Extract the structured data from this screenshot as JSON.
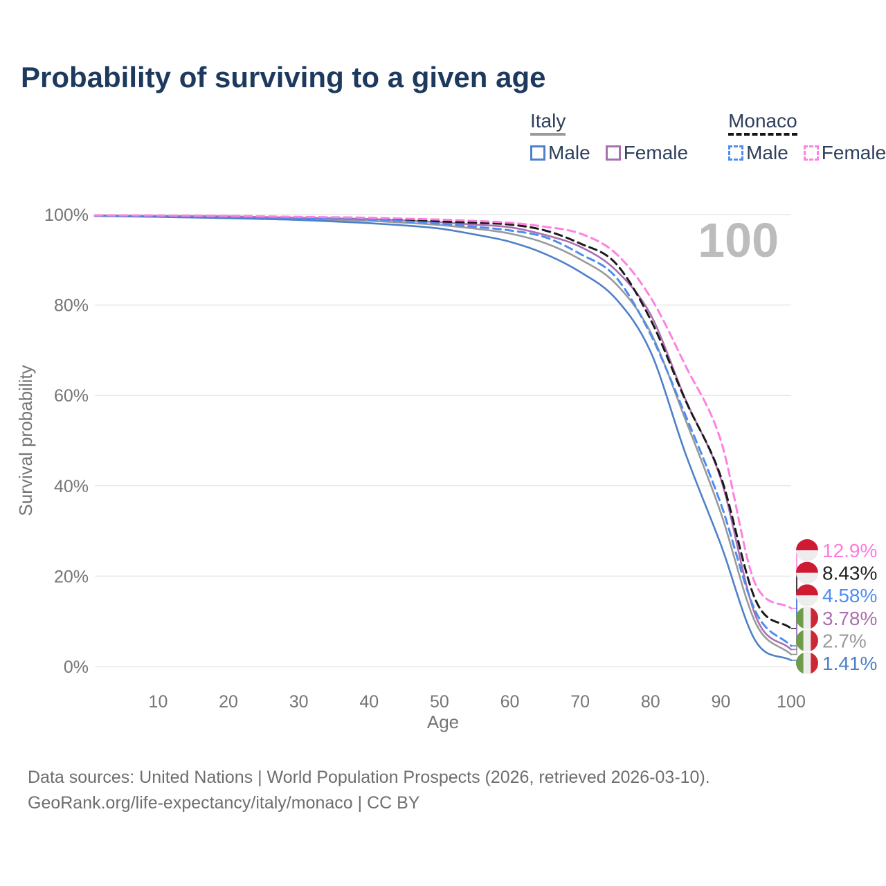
{
  "title": "Probability of surviving to a given age",
  "hover_age_label": "100",
  "legend": {
    "groups": [
      {
        "name": "Italy",
        "line_style": "solid",
        "underline_color": "#9a9a9a",
        "items": [
          {
            "label": "Male",
            "color": "#4e80c9",
            "dash": false
          },
          {
            "label": "Female",
            "color": "#ab6fb0",
            "dash": false
          }
        ]
      },
      {
        "name": "Monaco",
        "line_style": "dashed",
        "underline_color": "#151515",
        "items": [
          {
            "label": "Male",
            "color": "#4d8df2",
            "dash": true
          },
          {
            "label": "Female",
            "color": "#ff80e0",
            "dash": true
          }
        ]
      }
    ]
  },
  "chart_data": {
    "type": "line",
    "title": "Probability of surviving to a given age",
    "xlabel": "Age",
    "ylabel": "Survival probability",
    "xlim": [
      1,
      100
    ],
    "ylim": [
      0,
      100
    ],
    "grid": "horizontal",
    "x_ticks": [
      10,
      20,
      30,
      40,
      50,
      60,
      70,
      80,
      90,
      100
    ],
    "y_ticks": [
      {
        "value": 0,
        "label": "0%"
      },
      {
        "value": 20,
        "label": "20%"
      },
      {
        "value": 40,
        "label": "40%"
      },
      {
        "value": 60,
        "label": "60%"
      },
      {
        "value": 80,
        "label": "80%"
      },
      {
        "value": 100,
        "label": "100%"
      }
    ],
    "x": [
      1,
      10,
      20,
      30,
      40,
      45,
      50,
      55,
      60,
      65,
      70,
      75,
      80,
      85,
      90,
      95,
      100
    ],
    "series": [
      {
        "id": "italy-total",
        "name": "Italy (total)",
        "country": "Italy",
        "flag": "italy",
        "color": "#9a9a9a",
        "label_color": "#9a9a9a",
        "dash": false,
        "end_label": "2.7%",
        "values": [
          99.75,
          99.6,
          99.4,
          99.0,
          98.6,
          98.2,
          97.7,
          96.9,
          95.8,
          93.7,
          90.1,
          84.8,
          74.0,
          54.5,
          34.0,
          9.5,
          2.7
        ]
      },
      {
        "id": "italy-female",
        "name": "Italy Female",
        "country": "Italy",
        "flag": "italy",
        "color": "#ab6fb0",
        "label_color": "#ab6fb0",
        "dash": false,
        "end_label": "3.78%",
        "values": [
          99.8,
          99.7,
          99.6,
          99.3,
          99.0,
          98.7,
          98.3,
          97.8,
          97.2,
          95.5,
          92.9,
          87.8,
          77.9,
          59.0,
          41.5,
          11.0,
          3.78
        ]
      },
      {
        "id": "italy-male",
        "name": "Italy Male",
        "country": "Italy",
        "flag": "italy",
        "color": "#4e80c9",
        "label_color": "#4e80c9",
        "dash": false,
        "end_label": "1.41%",
        "values": [
          99.7,
          99.5,
          99.2,
          98.8,
          98.1,
          97.6,
          96.9,
          95.6,
          94.0,
          91.3,
          87.3,
          81.5,
          69.7,
          47.0,
          27.0,
          5.5,
          1.41
        ]
      },
      {
        "id": "monaco-total",
        "name": "Monaco (total)",
        "country": "Monaco",
        "flag": "monaco",
        "color": "#1a1a1a",
        "label_color": "#222222",
        "dash": true,
        "end_label": "8.43%",
        "values": [
          99.82,
          99.7,
          99.6,
          99.4,
          99.1,
          98.9,
          98.5,
          98.2,
          97.8,
          96.5,
          93.6,
          89.3,
          76.8,
          58.8,
          42.0,
          14.5,
          8.43
        ]
      },
      {
        "id": "monaco-male",
        "name": "Monaco Male",
        "country": "Monaco",
        "flag": "monaco",
        "color": "#4d8df2",
        "label_color": "#4d8df2",
        "dash": true,
        "end_label": "4.58%",
        "values": [
          99.8,
          99.7,
          99.5,
          99.2,
          98.9,
          98.5,
          98.0,
          97.3,
          96.5,
          95.0,
          91.3,
          86.3,
          73.5,
          55.5,
          36.0,
          12.0,
          4.58
        ]
      },
      {
        "id": "monaco-female",
        "name": "Monaco Female",
        "country": "Monaco",
        "flag": "monaco",
        "color": "#ff80e0",
        "label_color": "#ff7ae0",
        "dash": true,
        "end_label": "12.9%",
        "values": [
          99.85,
          99.8,
          99.7,
          99.5,
          99.3,
          99.1,
          98.9,
          98.6,
          98.2,
          97.3,
          95.8,
          91.5,
          81.7,
          66.5,
          50.0,
          18.0,
          12.9
        ]
      }
    ],
    "flag_colors": {
      "monaco_red": "#ce1b33",
      "flag_white": "#ededed",
      "italy_green": "#6e9c4a",
      "italy_red": "#cb2936"
    },
    "legend_position": "top-right"
  },
  "footer": {
    "line1": "Data sources: United Nations | World Population Prospects (2026, retrieved 2026-03-10).",
    "line2": "GeoRank.org/life-expectancy/italy/monaco | CC BY"
  }
}
